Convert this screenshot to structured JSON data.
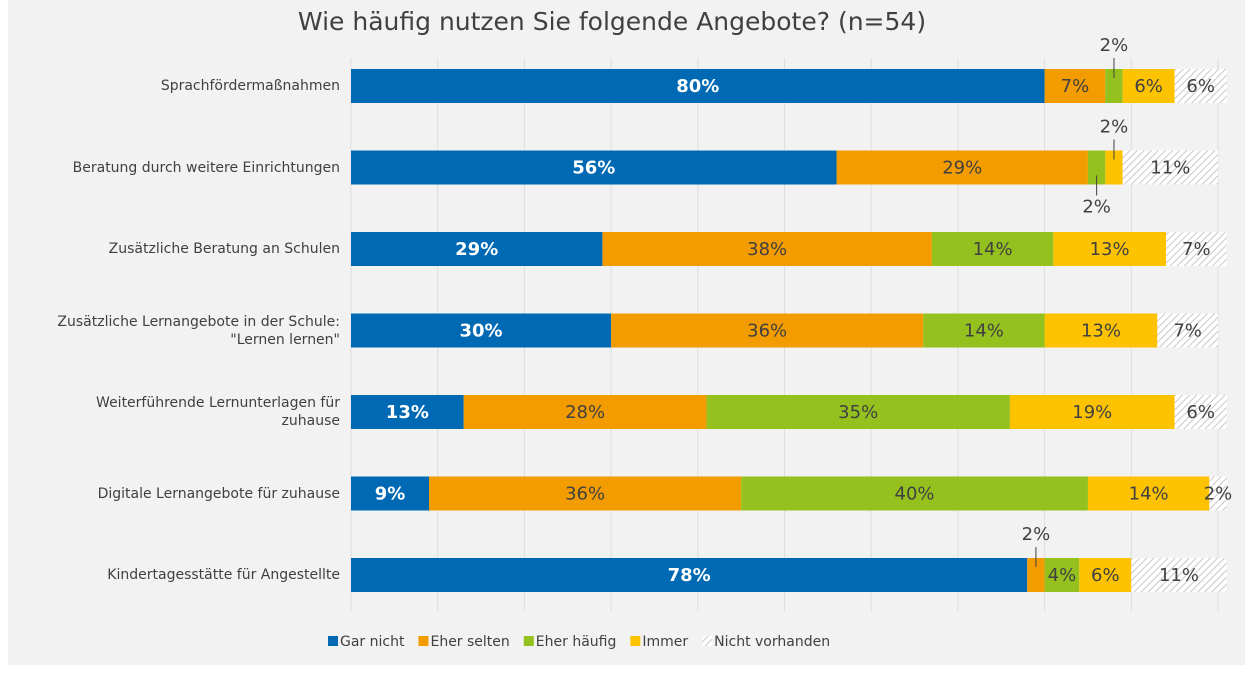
{
  "chart_data": {
    "type": "stacked_barh",
    "title": "Wie häufig nutzen Sie folgende Angebote? (n=54)",
    "categories": [
      "Sprachfördermaßnahmen",
      "Beratung durch weitere Einrichtungen",
      "Zusätzliche Beratung an Schulen",
      "Zusätzliche Lernangebote in der Schule: \"Lernen lernen\"",
      "Weiterführende Lernunterlagen für zuhause",
      "Digitale Lernangebote für zuhause",
      "Kindertagesstätte für Angestellte"
    ],
    "series": [
      {
        "name": "Gar nicht",
        "color": "#0069b4",
        "values": [
          80,
          56,
          29,
          30,
          13,
          9,
          78
        ],
        "value_labels": [
          "80%",
          "56%",
          "29%",
          "30%",
          "13%",
          "9%",
          "78%"
        ]
      },
      {
        "name": "Eher selten",
        "color": "#f39c00",
        "values": [
          7,
          29,
          38,
          36,
          28,
          36,
          2
        ],
        "value_labels": [
          "7%",
          "29%",
          "38%",
          "36%",
          "28%",
          "36%",
          "2%"
        ]
      },
      {
        "name": "Eher häufig",
        "color": "#95c11f",
        "values": [
          2,
          2,
          14,
          14,
          35,
          40,
          4
        ],
        "value_labels": [
          "2%",
          "2%",
          "14%",
          "14%",
          "35%",
          "40%",
          "4%"
        ]
      },
      {
        "name": "Immer",
        "color": "#fdc300",
        "values": [
          6,
          2,
          13,
          13,
          19,
          14,
          6
        ],
        "value_labels": [
          "6%",
          "2%",
          "13%",
          "13%",
          "19%",
          "14%",
          "6%"
        ]
      },
      {
        "name": "Nicht vorhanden",
        "color": "hatch",
        "values": [
          6,
          11,
          7,
          7,
          6,
          2,
          11
        ],
        "value_labels": [
          "6%",
          "11%",
          "7%",
          "7%",
          "6%",
          "2%",
          "11%"
        ]
      }
    ],
    "xlim": [
      0,
      100
    ],
    "xticks": [
      0,
      10,
      20,
      30,
      40,
      50,
      60,
      70,
      80,
      90,
      100
    ],
    "grid": true,
    "legend": "bottom"
  }
}
